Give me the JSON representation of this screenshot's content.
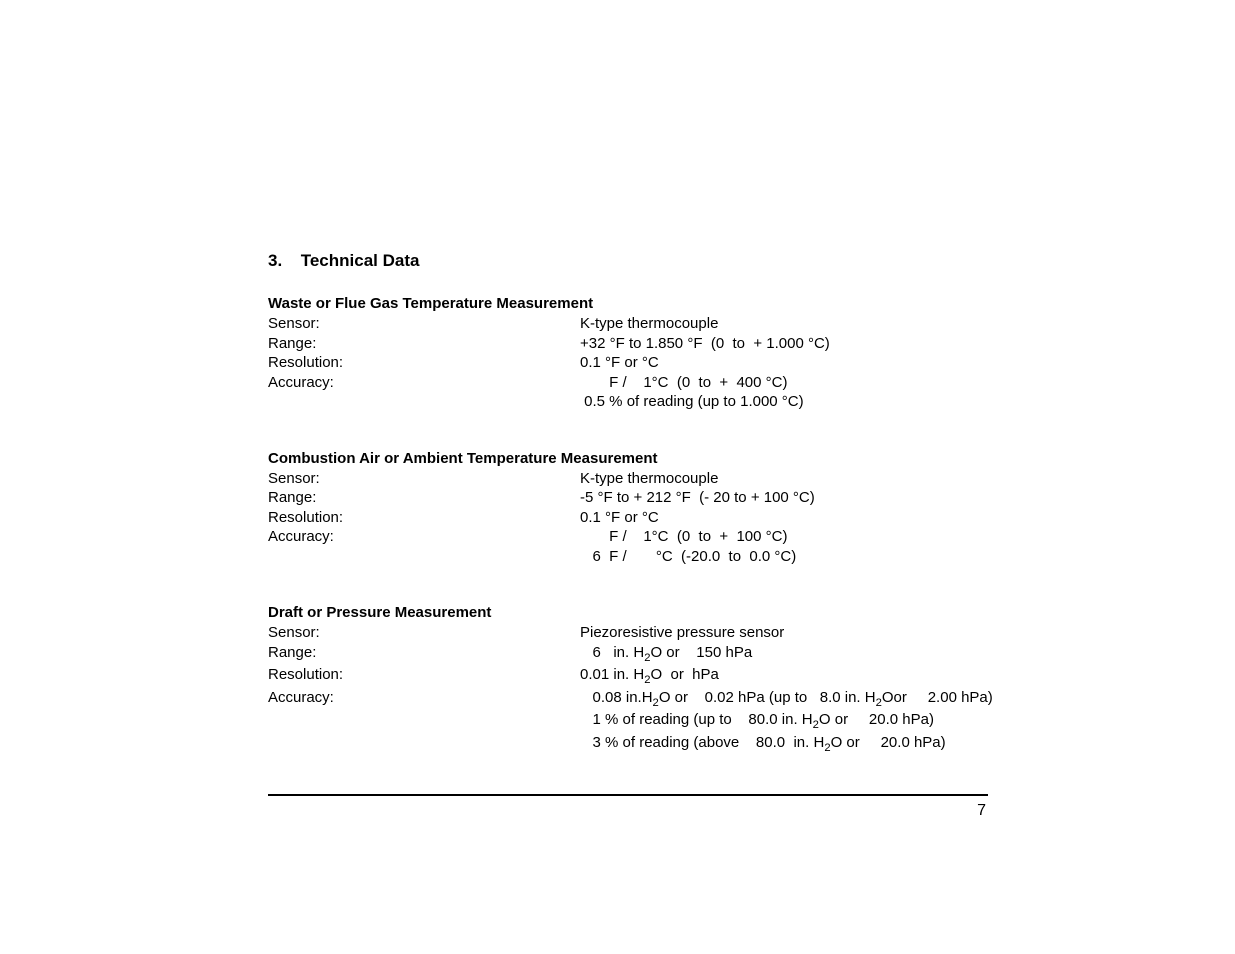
{
  "section": {
    "number": "3.",
    "title": "Technical Data"
  },
  "blocks": [
    {
      "title": "Waste or Flue Gas Temperature Measurement",
      "rows": [
        {
          "label": "Sensor:",
          "value": "K-type thermocouple"
        },
        {
          "label": "Range:",
          "value": "+32 °F to 1.850 °F  (0  to  + 1.000 °C)"
        },
        {
          "label": "Resolution:",
          "value": "0.1 °F or °C"
        },
        {
          "label": "Accuracy:",
          "value": "       F /    1°C  (0  to  +  400 °C)"
        },
        {
          "label": "",
          "value": " 0.5 % of reading (up to 1.000 °C)"
        }
      ]
    },
    {
      "title": "Combustion Air or Ambient Temperature Measurement",
      "rows": [
        {
          "label": "Sensor:",
          "value": "K-type thermocouple"
        },
        {
          "label": "Range:",
          "value": "-5 °F to + 212 °F  (- 20 to + 100 °C)"
        },
        {
          "label": "Resolution:",
          "value": "0.1 °F or °C"
        },
        {
          "label": "Accuracy:",
          "value": "       F /    1°C  (0  to  +  100 °C)"
        },
        {
          "label": "",
          "value": "   6  F /       °C  (-20.0  to  0.0 °C)"
        }
      ]
    },
    {
      "title": "Draft or  Pressure Measurement",
      "rows": [
        {
          "label": "Sensor:",
          "value": "Piezoresistive pressure sensor"
        },
        {
          "label": "Range:",
          "value": "   6   in. H₂O or    150 hPa"
        },
        {
          "label": "Resolution:",
          "value": "0.01 in. H₂O  or  hPa"
        },
        {
          "label": "Accuracy:",
          "value": "   0.08 in.H₂O or    0.02 hPa (up to   8.0 in. H₂Oor     2.00 hPa)"
        },
        {
          "label": "",
          "value": "   1 % of reading (up to    80.0 in. H₂O or     20.0 hPa)"
        },
        {
          "label": "",
          "value": "   3 % of reading (above    80.0  in. H₂O or     20.0 hPa)"
        }
      ]
    }
  ],
  "pageNumber": "7",
  "colors": {
    "text": "#000000",
    "background": "#ffffff",
    "rule": "#000000"
  },
  "typography": {
    "base_fontsize_pt": 11,
    "heading_fontsize_pt": 13,
    "font_family": "Arial"
  }
}
